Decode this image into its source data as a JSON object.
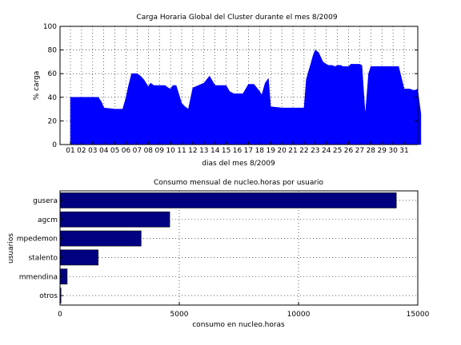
{
  "colors": {
    "area": "#0000FF",
    "bar": "#000080",
    "grid": "#000000",
    "background": "#FFFFFF"
  },
  "chart_data": [
    {
      "type": "area",
      "title": "Carga Horaria Global del Cluster durante el mes 8/2009",
      "xlabel": "dias del mes 8/2009",
      "ylabel": "% carga",
      "ylim": [
        0,
        100
      ],
      "yticks": [
        "0",
        "20",
        "40",
        "60",
        "80",
        "100"
      ],
      "xticks": [
        "01",
        "02",
        "03",
        "04",
        "05",
        "06",
        "07",
        "08",
        "09",
        "10",
        "11",
        "12",
        "13",
        "14",
        "15",
        "16",
        "17",
        "18",
        "19",
        "20",
        "21",
        "22",
        "23",
        "24",
        "25",
        "26",
        "27",
        "28",
        "29",
        "30",
        "31"
      ],
      "grid": true,
      "x": [
        0.0,
        1.0,
        1.5,
        2.0,
        2.5,
        2.8,
        3.0,
        4.0,
        4.3,
        4.7,
        5.0,
        5.2,
        5.5,
        6.0,
        6.3,
        6.6,
        7.0,
        7.2,
        7.5,
        8.0,
        8.5,
        8.8,
        9.0,
        9.2,
        9.5,
        10.0,
        10.3,
        10.6,
        11.0,
        11.5,
        12.0,
        12.5,
        13.0,
        13.5,
        14.0,
        14.3,
        14.7,
        15.0,
        15.5,
        16.0,
        16.5,
        17.0,
        17.2,
        17.5,
        17.8,
        18.0,
        19.0,
        20.0,
        20.5,
        21.0,
        21.2,
        21.4,
        21.6,
        21.8,
        22.0,
        22.3,
        22.7,
        23.0,
        23.2,
        23.5,
        23.8,
        24.0,
        24.3,
        24.5,
        24.8,
        25.0,
        25.2,
        25.4,
        25.6,
        25.8,
        26.0,
        26.2,
        26.5,
        26.8,
        27.0,
        27.5,
        28.0,
        28.5,
        29.0,
        29.5,
        30.0,
        30.5,
        30.8,
        31.0,
        31.2,
        31.5
      ],
      "y": [
        40,
        40,
        40,
        40,
        40,
        36,
        31,
        30,
        30,
        30,
        40,
        49,
        60,
        60,
        58,
        55,
        49,
        52,
        50,
        50,
        50,
        48,
        47,
        50,
        50,
        35,
        32,
        30,
        48,
        50,
        52,
        58,
        50,
        50,
        50,
        45,
        43,
        43,
        43,
        51,
        51,
        45,
        42,
        52,
        56,
        32,
        31,
        31,
        31,
        31,
        55,
        62,
        68,
        75,
        80,
        78,
        70,
        68,
        67,
        67,
        66,
        67,
        67,
        66,
        66,
        66,
        68,
        68,
        68,
        68,
        68,
        67,
        25,
        60,
        66,
        66,
        66,
        66,
        66,
        66,
        47,
        47,
        46,
        46,
        47,
        26
      ]
    },
    {
      "type": "bar",
      "orientation": "horizontal",
      "title": "Consumo mensual de nucleo.horas por usuario",
      "xlabel": "consumo en nucleo.horas",
      "ylabel": "usuarios",
      "xlim": [
        0,
        15000
      ],
      "xticks": [
        "0",
        "5000",
        "10000",
        "15000"
      ],
      "grid": true,
      "categories": [
        "gusera",
        "agcm",
        "mpedemon",
        "stalento",
        "mmendina",
        "otros"
      ],
      "values": [
        14100,
        4600,
        3400,
        1600,
        300,
        40
      ]
    }
  ]
}
